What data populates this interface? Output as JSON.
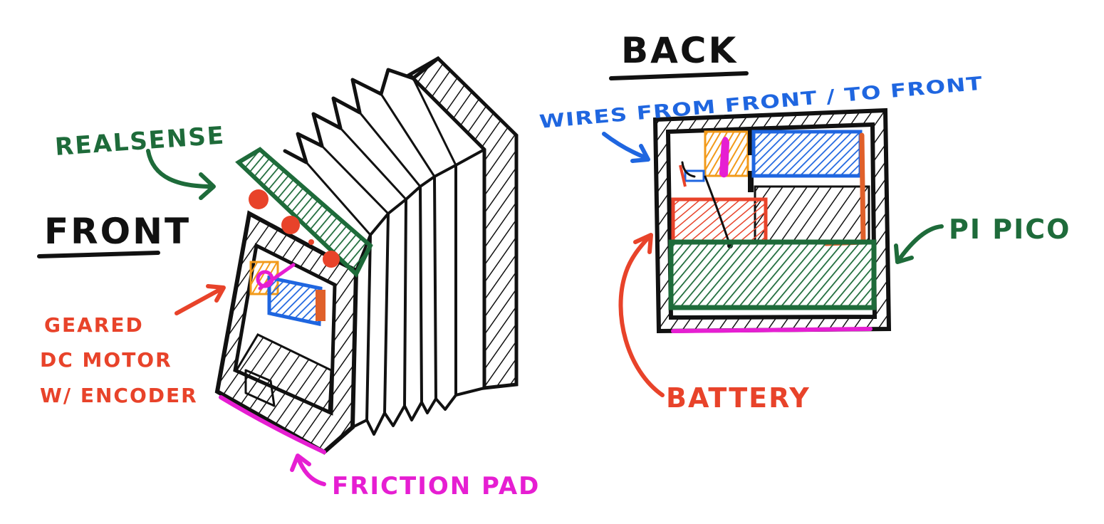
{
  "headings": {
    "front": "FRONT",
    "back": "BACK"
  },
  "labels": {
    "realsense": "REALSENSE",
    "motor_line1": "GEARED",
    "motor_line2": "DC MOTOR",
    "motor_line3": "W/ ENCODER",
    "friction_pad": "FRICTION PAD",
    "wires": "WIRES FROM FRONT / TO FRONT",
    "pi_pico": "PI PICO",
    "battery": "BATTERY"
  },
  "colors": {
    "ink": "#111111",
    "green": "#1e6b3a",
    "red": "#e8432a",
    "blue": "#1f66e0",
    "magenta": "#e61ed2",
    "orange": "#f29a1a",
    "dark_orange": "#e0602a"
  }
}
